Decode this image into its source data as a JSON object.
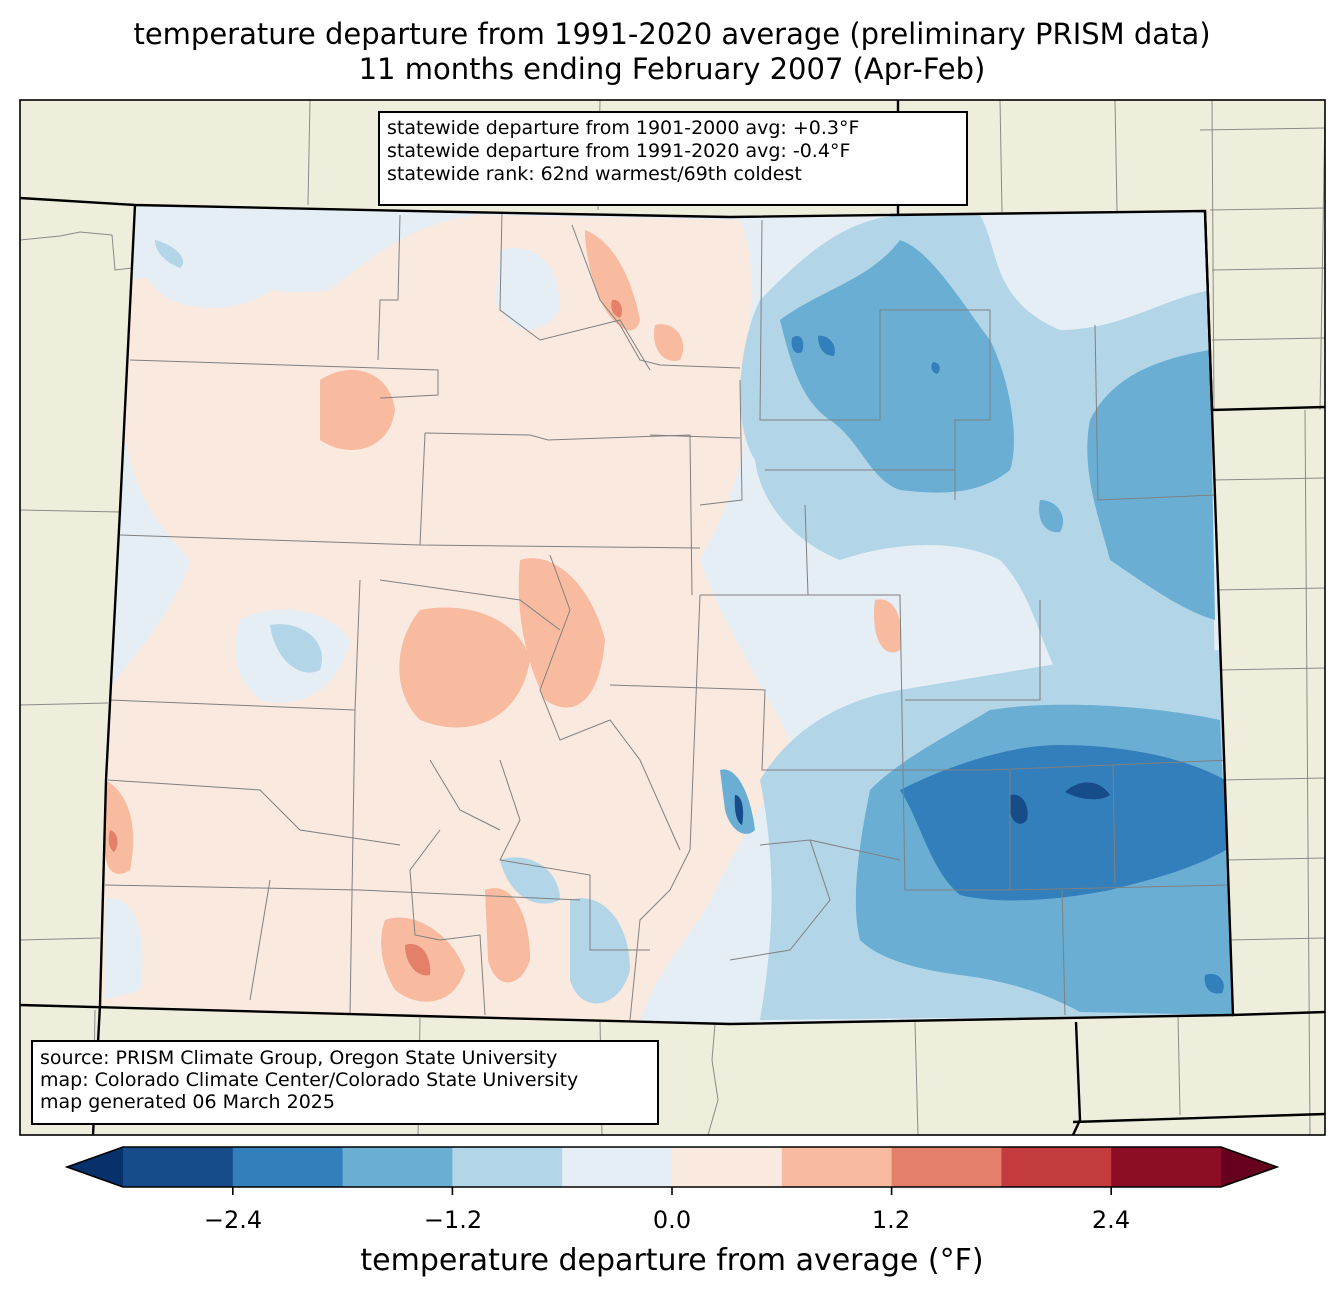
{
  "title": {
    "line1": "temperature departure from 1991-2020 average (preliminary PRISM data)",
    "line2": "11 months ending February 2007 (Apr-Feb)"
  },
  "stats": {
    "line1": "statewide departure from 1901-2000 avg: +0.3°F",
    "line2": "statewide departure from 1991-2020 avg: -0.4°F",
    "line3": "statewide rank: 62nd warmest/69th coldest"
  },
  "source": {
    "line1": "source: PRISM Climate Group, Oregon State University",
    "line2": "map: Colorado Climate Center/Colorado State University",
    "line3": "map generated 06 March 2025"
  },
  "colors": {
    "background_land": "#efeedc",
    "boundary_state": "#000000",
    "boundary_county": "#808080",
    "bins": [
      "#08306b",
      "#154c89",
      "#327fbb",
      "#6aaed4",
      "#b2d5e8",
      "#e5edf5",
      "#fae9df",
      "#f8bba0",
      "#e4806a",
      "#c33b3d",
      "#8c0e26",
      "#67001f"
    ]
  },
  "colorbar": {
    "label": "temperature departure from average (°F)",
    "ticks": [
      "−2.4",
      "−1.2",
      "0.0",
      "1.2",
      "2.4"
    ],
    "tick_values": [
      -2.4,
      -1.2,
      0.0,
      1.2,
      2.4
    ],
    "levels": [
      -3.0,
      -2.4,
      -1.8,
      -1.2,
      -0.6,
      0.0,
      0.6,
      1.2,
      1.8,
      2.4,
      3.0
    ],
    "extend": "both"
  },
  "map_data": {
    "type": "filled-contour-map",
    "region": "Colorado",
    "variable": "temperature departure (°F)",
    "summary": [
      {
        "area": "western slope / mountains",
        "range": [
          0.0,
          1.2
        ]
      },
      {
        "area": "northeast plains",
        "range": [
          -1.8,
          -0.6
        ]
      },
      {
        "area": "southeast plains",
        "range": [
          -3.0,
          -1.8
        ]
      }
    ]
  }
}
